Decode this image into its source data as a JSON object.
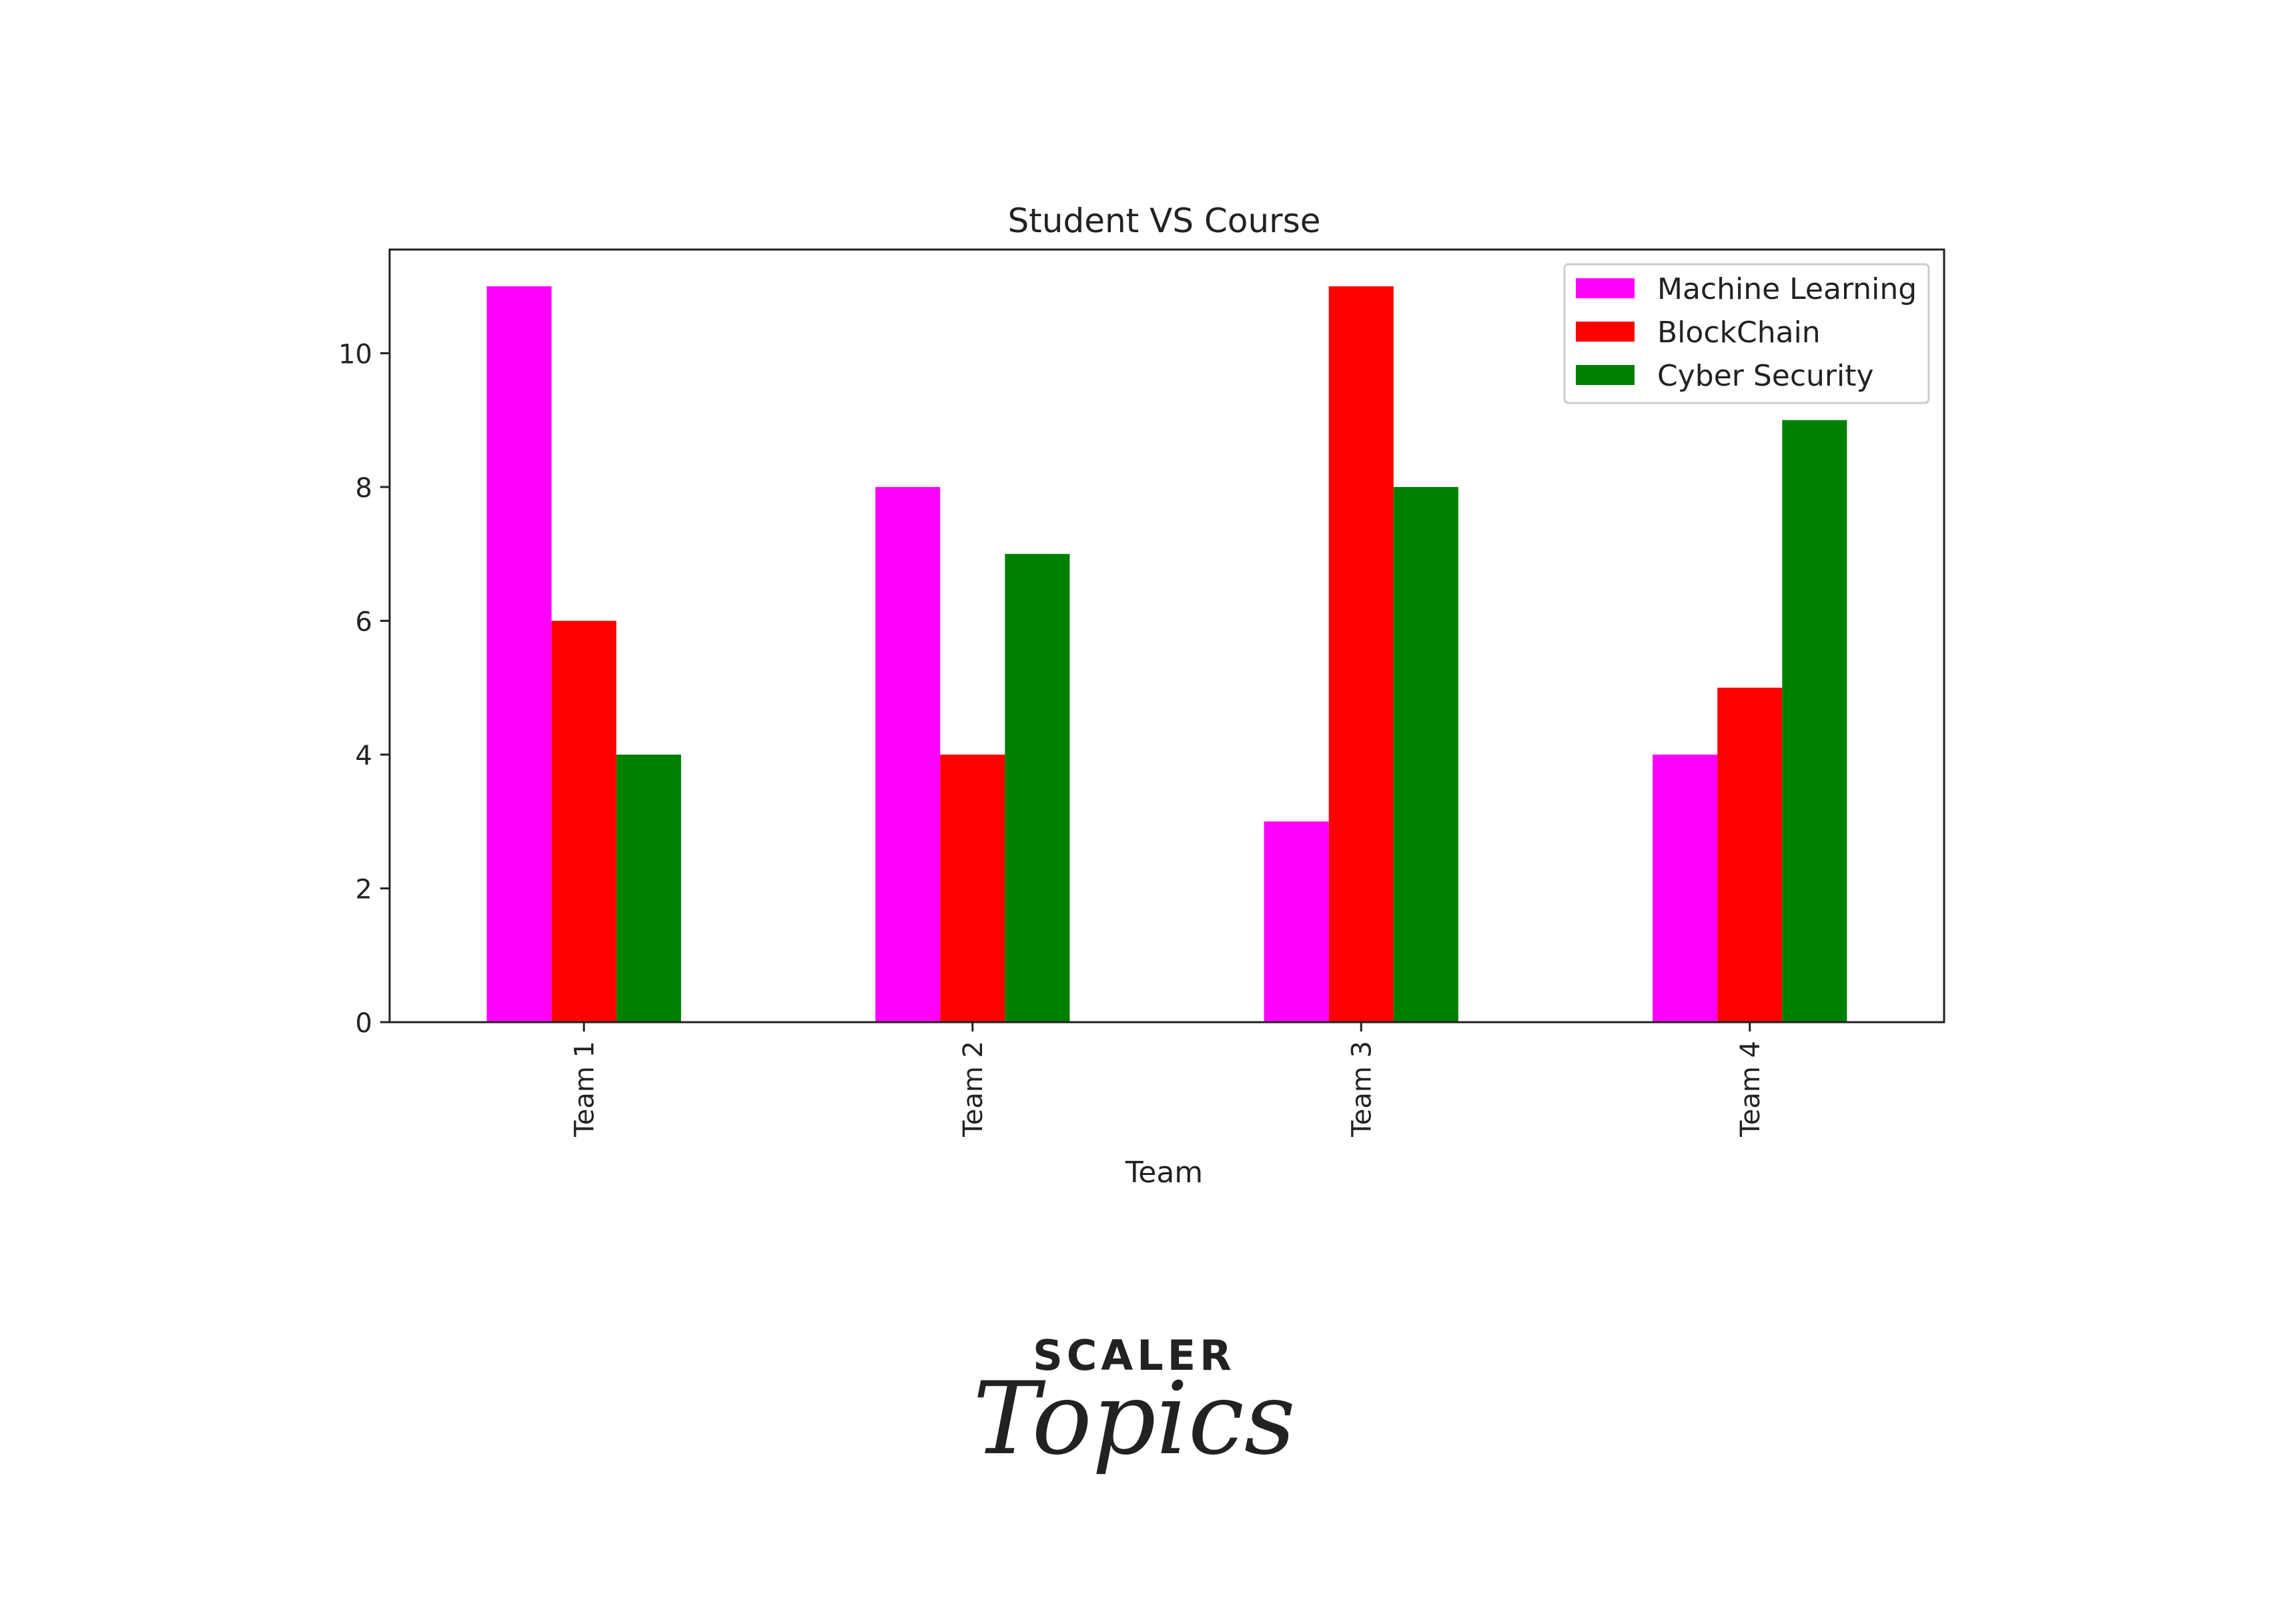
{
  "chart_data": {
    "type": "bar",
    "title": "Student VS Course",
    "xlabel": "Team",
    "ylabel": "",
    "categories": [
      "Team 1",
      "Team 2",
      "Team 3",
      "Team 4"
    ],
    "series": [
      {
        "name": "Machine Learning",
        "color": "#ff00ff",
        "values": [
          11,
          8,
          3,
          4
        ]
      },
      {
        "name": "BlockChain",
        "color": "#ff0000",
        "values": [
          6,
          4,
          11,
          5
        ]
      },
      {
        "name": "Cyber Security",
        "color": "#008000",
        "values": [
          4,
          7,
          8,
          9
        ]
      }
    ],
    "ylim": [
      0,
      11.55
    ],
    "yticks": [
      0,
      2,
      4,
      6,
      8,
      10
    ],
    "grid": false,
    "legend_position": "top-right"
  },
  "logo": {
    "word": "SCALER",
    "script": "Topics",
    "word_color": "#1a1f3c",
    "script_color": "#e0266f"
  }
}
